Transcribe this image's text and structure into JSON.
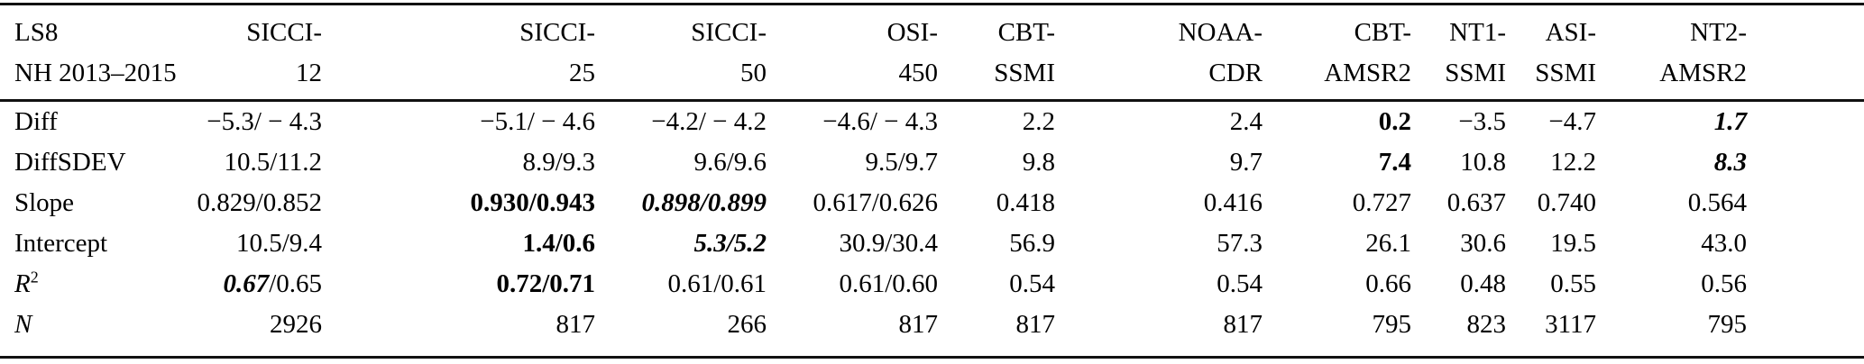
{
  "colors": {
    "background": "#ffffff",
    "text": "#000000",
    "rule": "#111111"
  },
  "table": {
    "corner": {
      "line1": "LS8",
      "line2": "NH 2013–2015"
    },
    "columns": [
      {
        "id": "sicci-12",
        "line1": "SICCI-",
        "line2": "12"
      },
      {
        "id": "sicci-25",
        "line1": "SICCI-",
        "line2": "25"
      },
      {
        "id": "sicci-50",
        "line1": "SICCI-",
        "line2": "50"
      },
      {
        "id": "osi-450",
        "line1": "OSI-",
        "line2": "450"
      },
      {
        "id": "cbt-ssmi",
        "line1": "CBT-",
        "line2": "SSMI"
      },
      {
        "id": "noaa-cdr",
        "line1": "NOAA-",
        "line2": "CDR"
      },
      {
        "id": "cbt-amsr2",
        "line1": "CBT-",
        "line2": "AMSR2"
      },
      {
        "id": "nt1-ssmi",
        "line1": "NT1-",
        "line2": "SSMI"
      },
      {
        "id": "asi-ssmi",
        "line1": "ASI-",
        "line2": "SSMI"
      },
      {
        "id": "nt2-amsr2",
        "line1": "NT2-",
        "line2": "AMSR2"
      }
    ],
    "rows": [
      {
        "id": "diff",
        "label": [
          {
            "t": "Diff",
            "s": "n"
          }
        ],
        "cells": [
          [
            {
              "t": "−5.3/ − 4.3",
              "s": "n"
            }
          ],
          [
            {
              "t": "−5.1/ − 4.6",
              "s": "n"
            }
          ],
          [
            {
              "t": "−4.2/ − 4.2",
              "s": "n"
            }
          ],
          [
            {
              "t": "−4.6/ − 4.3",
              "s": "n"
            }
          ],
          [
            {
              "t": "2.2",
              "s": "n"
            }
          ],
          [
            {
              "t": "2.4",
              "s": "n"
            }
          ],
          [
            {
              "t": "0.2",
              "s": "b"
            }
          ],
          [
            {
              "t": "−3.5",
              "s": "n"
            }
          ],
          [
            {
              "t": "−4.7",
              "s": "n"
            }
          ],
          [
            {
              "t": "1.7",
              "s": "bi"
            }
          ]
        ]
      },
      {
        "id": "diffsdev",
        "label": [
          {
            "t": "DiffSDEV",
            "s": "n"
          }
        ],
        "cells": [
          [
            {
              "t": "10.5/11.2",
              "s": "n"
            }
          ],
          [
            {
              "t": "8.9/9.3",
              "s": "n"
            }
          ],
          [
            {
              "t": "9.6/9.6",
              "s": "n"
            }
          ],
          [
            {
              "t": "9.5/9.7",
              "s": "n"
            }
          ],
          [
            {
              "t": "9.8",
              "s": "n"
            }
          ],
          [
            {
              "t": "9.7",
              "s": "n"
            }
          ],
          [
            {
              "t": "7.4",
              "s": "b"
            }
          ],
          [
            {
              "t": "10.8",
              "s": "n"
            }
          ],
          [
            {
              "t": "12.2",
              "s": "n"
            }
          ],
          [
            {
              "t": "8.3",
              "s": "bi"
            }
          ]
        ]
      },
      {
        "id": "slope",
        "label": [
          {
            "t": "Slope",
            "s": "n"
          }
        ],
        "cells": [
          [
            {
              "t": "0.829/0.852",
              "s": "n"
            }
          ],
          [
            {
              "t": "0.930/0.943",
              "s": "b"
            }
          ],
          [
            {
              "t": "0.898/0.899",
              "s": "bi"
            }
          ],
          [
            {
              "t": "0.617/0.626",
              "s": "n"
            }
          ],
          [
            {
              "t": "0.418",
              "s": "n"
            }
          ],
          [
            {
              "t": "0.416",
              "s": "n"
            }
          ],
          [
            {
              "t": "0.727",
              "s": "n"
            }
          ],
          [
            {
              "t": "0.637",
              "s": "n"
            }
          ],
          [
            {
              "t": "0.740",
              "s": "n"
            }
          ],
          [
            {
              "t": "0.564",
              "s": "n"
            }
          ]
        ]
      },
      {
        "id": "intercept",
        "label": [
          {
            "t": "Intercept",
            "s": "n"
          }
        ],
        "cells": [
          [
            {
              "t": "10.5/9.4",
              "s": "n"
            }
          ],
          [
            {
              "t": "1.4/0.6",
              "s": "b"
            }
          ],
          [
            {
              "t": "5.3/5.2",
              "s": "bi"
            }
          ],
          [
            {
              "t": "30.9/30.4",
              "s": "n"
            }
          ],
          [
            {
              "t": "56.9",
              "s": "n"
            }
          ],
          [
            {
              "t": "57.3",
              "s": "n"
            }
          ],
          [
            {
              "t": "26.1",
              "s": "n"
            }
          ],
          [
            {
              "t": "30.6",
              "s": "n"
            }
          ],
          [
            {
              "t": "19.5",
              "s": "n"
            }
          ],
          [
            {
              "t": "43.0",
              "s": "n"
            }
          ]
        ]
      },
      {
        "id": "r-squared",
        "label": [
          {
            "t": "R",
            "s": "i"
          },
          {
            "t": "2",
            "s": "sup"
          }
        ],
        "cells": [
          [
            {
              "t": "0.67",
              "s": "bi"
            },
            {
              "t": "/0.65",
              "s": "n"
            }
          ],
          [
            {
              "t": "0.72/0.71",
              "s": "b"
            }
          ],
          [
            {
              "t": "0.61/0.61",
              "s": "n"
            }
          ],
          [
            {
              "t": "0.61/0.60",
              "s": "n"
            }
          ],
          [
            {
              "t": "0.54",
              "s": "n"
            }
          ],
          [
            {
              "t": "0.54",
              "s": "n"
            }
          ],
          [
            {
              "t": "0.66",
              "s": "n"
            }
          ],
          [
            {
              "t": "0.48",
              "s": "n"
            }
          ],
          [
            {
              "t": "0.55",
              "s": "n"
            }
          ],
          [
            {
              "t": "0.56",
              "s": "n"
            }
          ]
        ]
      },
      {
        "id": "n",
        "label": [
          {
            "t": "N",
            "s": "i"
          }
        ],
        "cells": [
          [
            {
              "t": "2926",
              "s": "n"
            }
          ],
          [
            {
              "t": "817",
              "s": "n"
            }
          ],
          [
            {
              "t": "266",
              "s": "n"
            }
          ],
          [
            {
              "t": "817",
              "s": "n"
            }
          ],
          [
            {
              "t": "817",
              "s": "n"
            }
          ],
          [
            {
              "t": "817",
              "s": "n"
            }
          ],
          [
            {
              "t": "795",
              "s": "n"
            }
          ],
          [
            {
              "t": "823",
              "s": "n"
            }
          ],
          [
            {
              "t": "3117",
              "s": "n"
            }
          ],
          [
            {
              "t": "795",
              "s": "n"
            }
          ]
        ]
      }
    ]
  }
}
